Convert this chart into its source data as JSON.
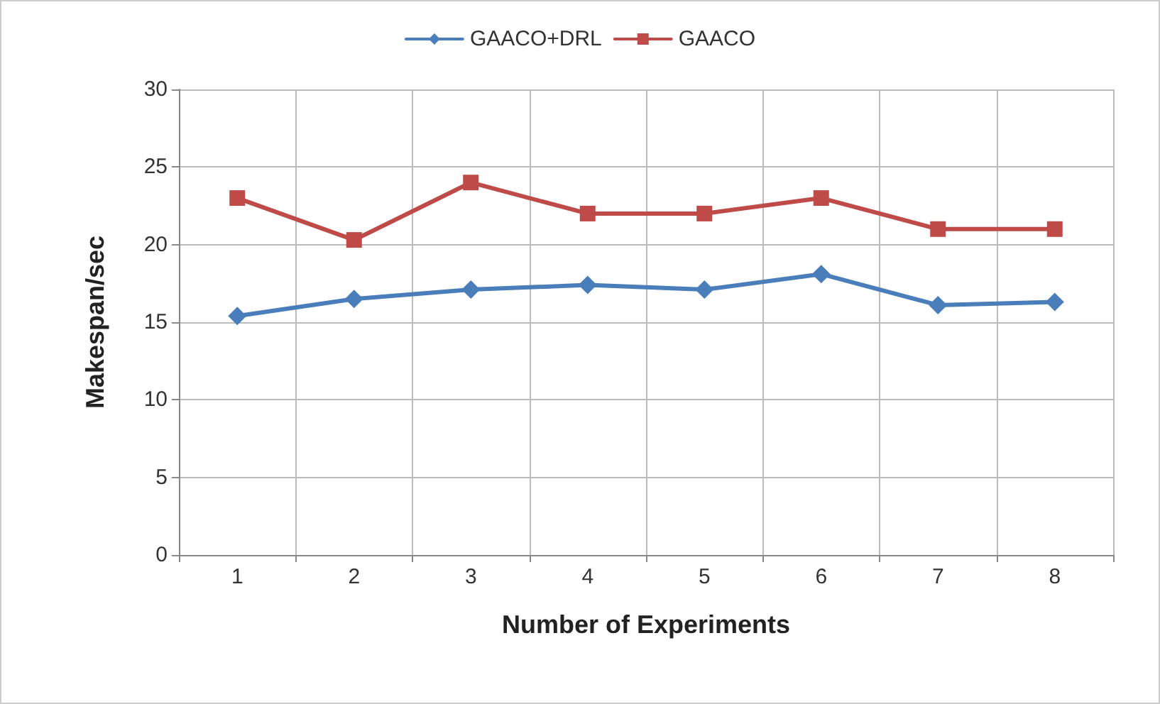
{
  "chart_data": {
    "type": "line",
    "categories": [
      "1",
      "2",
      "3",
      "4",
      "5",
      "6",
      "7",
      "8"
    ],
    "series": [
      {
        "name": "GAACO+DRL",
        "color": "#4a7ebb",
        "marker": "diamond",
        "values": [
          15.4,
          16.5,
          17.1,
          17.4,
          17.1,
          18.1,
          16.1,
          16.3
        ]
      },
      {
        "name": "GAACO",
        "color": "#be4b48",
        "marker": "square",
        "values": [
          23,
          20.3,
          24,
          22,
          22,
          23,
          21,
          21
        ]
      }
    ],
    "xlabel": "Number of Experiments",
    "ylabel": "Makespan/sec",
    "ylim": [
      0,
      30
    ],
    "yticks": [
      0,
      5,
      10,
      15,
      20,
      25,
      30
    ],
    "grid": true,
    "legend": "top",
    "line_style": "solid"
  }
}
